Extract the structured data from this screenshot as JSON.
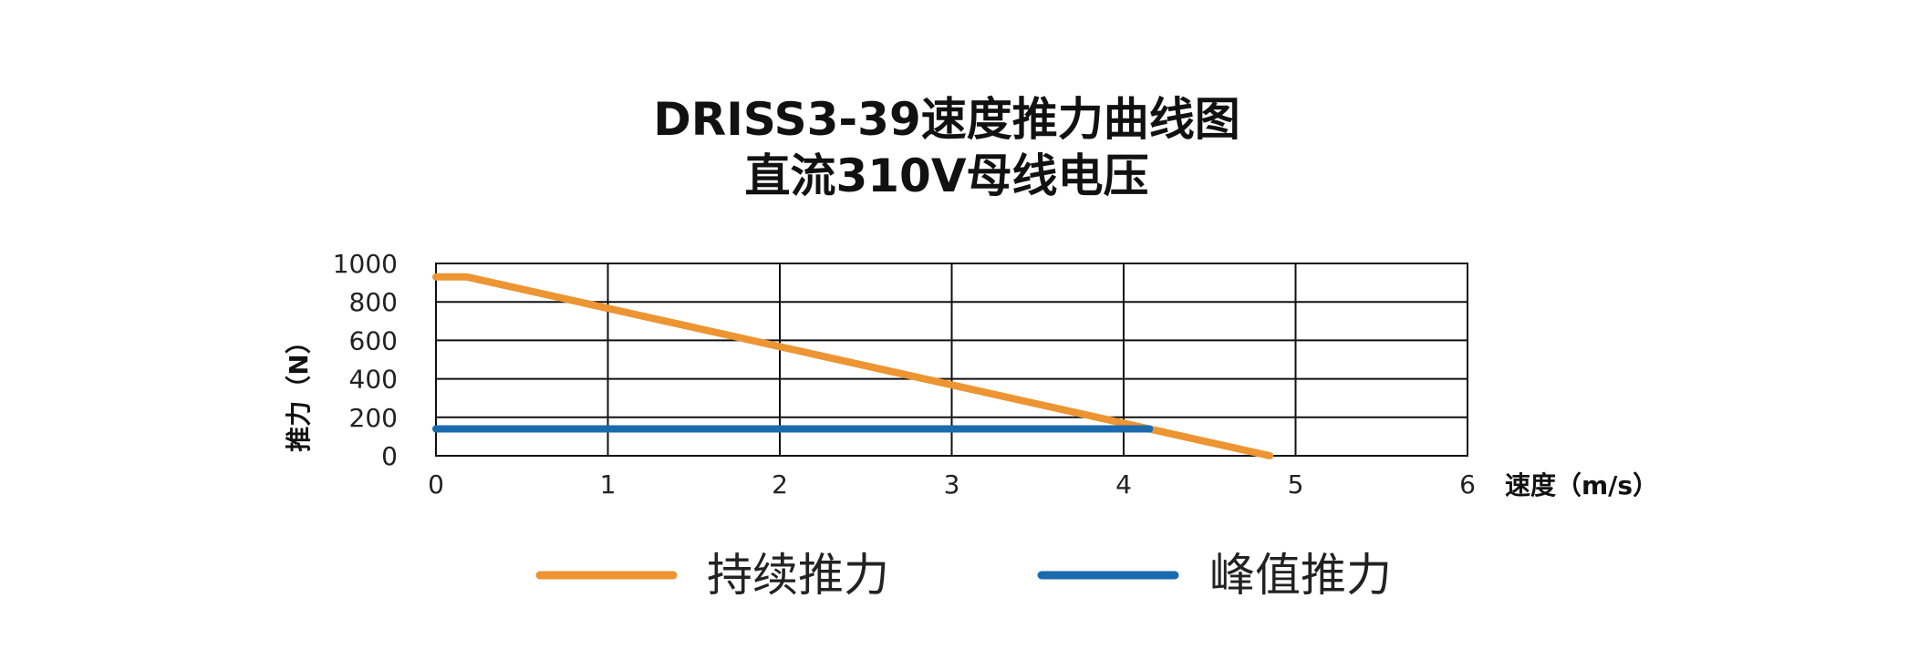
{
  "chart_data": {
    "type": "line",
    "title_lines": [
      "DRISS3-39速度推力曲线图",
      "直流310V母线电压"
    ],
    "xlabel": "速度（m/s）",
    "ylabel": "推力（N）",
    "xlim": [
      0,
      6
    ],
    "ylim": [
      0,
      1000
    ],
    "x_ticks": [
      "0",
      "1",
      "2",
      "3",
      "4",
      "5",
      "6"
    ],
    "y_ticks": [
      "0",
      "200",
      "400",
      "600",
      "800",
      "1000"
    ],
    "grid": true,
    "legend_position": "bottom",
    "series": [
      {
        "name": "持续推力",
        "color": "#EC9532",
        "x": [
          0,
          0.18,
          4.85
        ],
        "y": [
          930,
          930,
          0
        ]
      },
      {
        "name": "峰值推力",
        "color": "#1B6AAE",
        "x": [
          0,
          4.15
        ],
        "y": [
          140,
          140
        ]
      }
    ]
  }
}
